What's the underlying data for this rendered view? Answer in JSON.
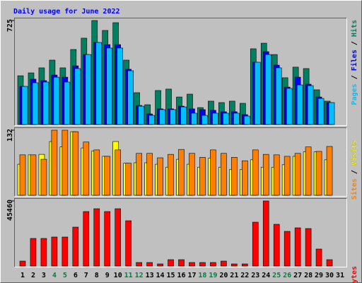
{
  "chart_data": {
    "type": "bar",
    "title": "Daily usage for June 2022",
    "title_color": "#0000FF",
    "categories": [
      "1",
      "2",
      "3",
      "4",
      "5",
      "6",
      "7",
      "8",
      "9",
      "10",
      "11",
      "12",
      "13",
      "14",
      "15",
      "16",
      "17",
      "18",
      "19",
      "20",
      "21",
      "22",
      "23",
      "24",
      "25",
      "26",
      "27",
      "28",
      "29",
      "30",
      "31"
    ],
    "category_colors": [
      "#000000",
      "#000000",
      "#000000",
      "#008040",
      "#008040",
      "#000000",
      "#000000",
      "#000000",
      "#000000",
      "#000000",
      "#008040",
      "#008040",
      "#000000",
      "#000000",
      "#000000",
      "#000000",
      "#000000",
      "#008040",
      "#008040",
      "#000000",
      "#000000",
      "#000000",
      "#000000",
      "#000000",
      "#008040",
      "#008040",
      "#000000",
      "#000000",
      "#000000",
      "#000000",
      "#000000"
    ],
    "legend_separator": " / ",
    "panels": [
      {
        "ylim": [
          0,
          725
        ],
        "yticks": [
          725
        ],
        "series": [
          {
            "name": "Pages",
            "color": "#00C0FF",
            "values": [
              266,
              291,
              296,
              330,
              296,
              390,
              488,
              572,
              533,
              533,
              375,
              128,
              64,
              104,
              104,
              123,
              79,
              64,
              79,
              79,
              79,
              59,
              434,
              488,
              395,
              252,
              276,
              271,
              182,
              153,
              null
            ]
          },
          {
            "name": "Files",
            "color": "#0000FF",
            "values": [
              266,
              316,
              306,
              345,
              330,
              409,
              488,
              572,
              557,
              557,
              385,
              133,
              74,
              109,
              109,
              128,
              109,
              104,
              99,
              89,
              89,
              69,
              434,
              508,
              414,
              261,
              330,
              281,
              192,
              153,
              null
            ]
          },
          {
            "name": "Hits",
            "color": "#008060",
            "values": [
              340,
              360,
              395,
              449,
              395,
              523,
              602,
              725,
              656,
              710,
              449,
              222,
              138,
              237,
              247,
              192,
              212,
              118,
              163,
              153,
              163,
              148,
              528,
              567,
              488,
              326,
              400,
              390,
              242,
              163,
              null
            ]
          }
        ]
      },
      {
        "ylim": [
          0,
          132
        ],
        "yticks": [
          132
        ],
        "series": [
          {
            "name": "Sites",
            "color": "#FF8000",
            "values": [
              82,
              82,
              73,
              132,
              132,
              129,
              108,
              92,
              79,
              92,
              65,
              85,
              85,
              76,
              83,
              93,
              85,
              77,
              92,
              85,
              77,
              70,
              92,
              83,
              82,
              79,
              85,
              98,
              89,
              99,
              null
            ]
          },
          {
            "name": "Visits",
            "color": "#FFFF00",
            "values": [
              63,
              82,
              83,
              109,
              98,
              129,
              96,
              90,
              79,
              109,
              65,
              66,
              66,
              63,
              57,
              73,
              63,
              57,
              75,
              57,
              52,
              52,
              72,
              57,
              57,
              62,
              79,
              88,
              88,
              72,
              null
            ]
          }
        ]
      },
      {
        "ylim": [
          0,
          45460
        ],
        "yticks": [
          45460
        ],
        "series": [
          {
            "name": "KBytes",
            "color": "#FF0000",
            "values": [
              3459,
              19270,
              19270,
              20258,
              20258,
              27176,
              38046,
              40022,
              38046,
              40022,
              31622,
              2471,
              2471,
              1482,
              4447,
              4447,
              2471,
              2471,
              2471,
              3459,
              1482,
              1482,
              30634,
              45460,
              29152,
              24211,
              26681,
              26187,
              11858,
              4447,
              null
            ]
          }
        ]
      }
    ]
  }
}
